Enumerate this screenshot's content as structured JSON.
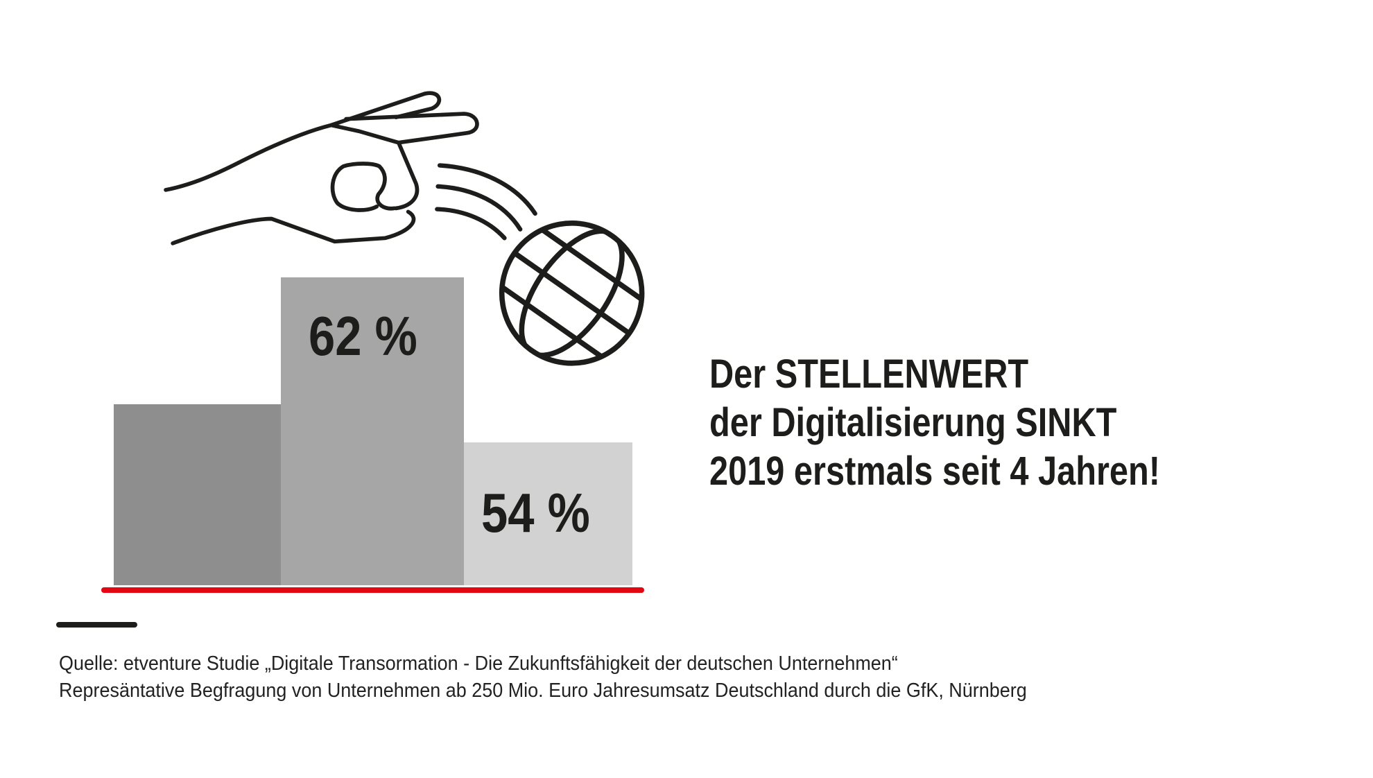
{
  "chart_data": {
    "type": "bar",
    "categories": [
      "bar-1",
      "bar-2",
      "bar-3"
    ],
    "values": [
      null,
      62,
      54
    ],
    "value_labels": [
      "",
      "62 %",
      "54 %"
    ],
    "bar_colors": [
      "#8e8e8e",
      "#a6a6a6",
      "#d2d2d2"
    ],
    "title": "",
    "xlabel": "",
    "ylabel": ""
  },
  "headline": {
    "lines": [
      "Der STELLENWERT",
      "der Digitalisierung SINKT",
      "2019 erstmals seit 4 Jahren!"
    ]
  },
  "source": {
    "line1": "Quelle: etventure Studie „Digitale Transormation - Die Zukunftsfähigkeit der deutschen Unternehmen“",
    "line2": "Represäntative Begfragung von Unternehmen ab 250 Mio. Euro Jahresumsatz Deutschland durch die GfK, Nürnberg"
  },
  "colors": {
    "accent": "#e30613",
    "text": "#1d1d1b"
  },
  "icons": [
    "hand-icon",
    "globe-icon"
  ]
}
